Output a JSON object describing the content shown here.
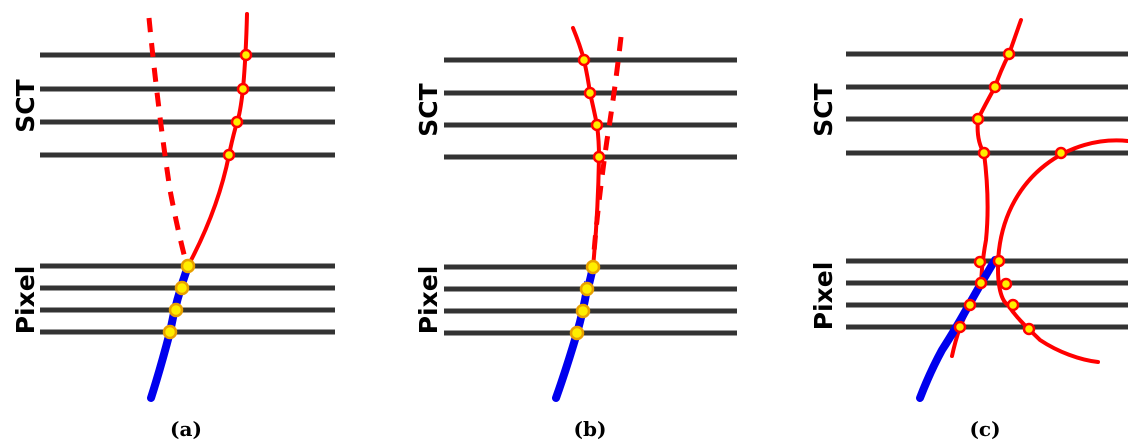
{
  "panels": [
    {
      "caption": "(a)",
      "sct_label": "SCT",
      "pixel_label": "Pixel"
    },
    {
      "caption": "(b)",
      "sct_label": "SCT",
      "pixel_label": "Pixel"
    },
    {
      "caption": "(c)",
      "sct_label": "SCT",
      "pixel_label": "Pixel"
    }
  ],
  "colors": {
    "detector_layer": "#333333",
    "sct_track": "#ff0000",
    "pixel_track": "#0000ee",
    "hit_fill": "#ffee00"
  }
}
